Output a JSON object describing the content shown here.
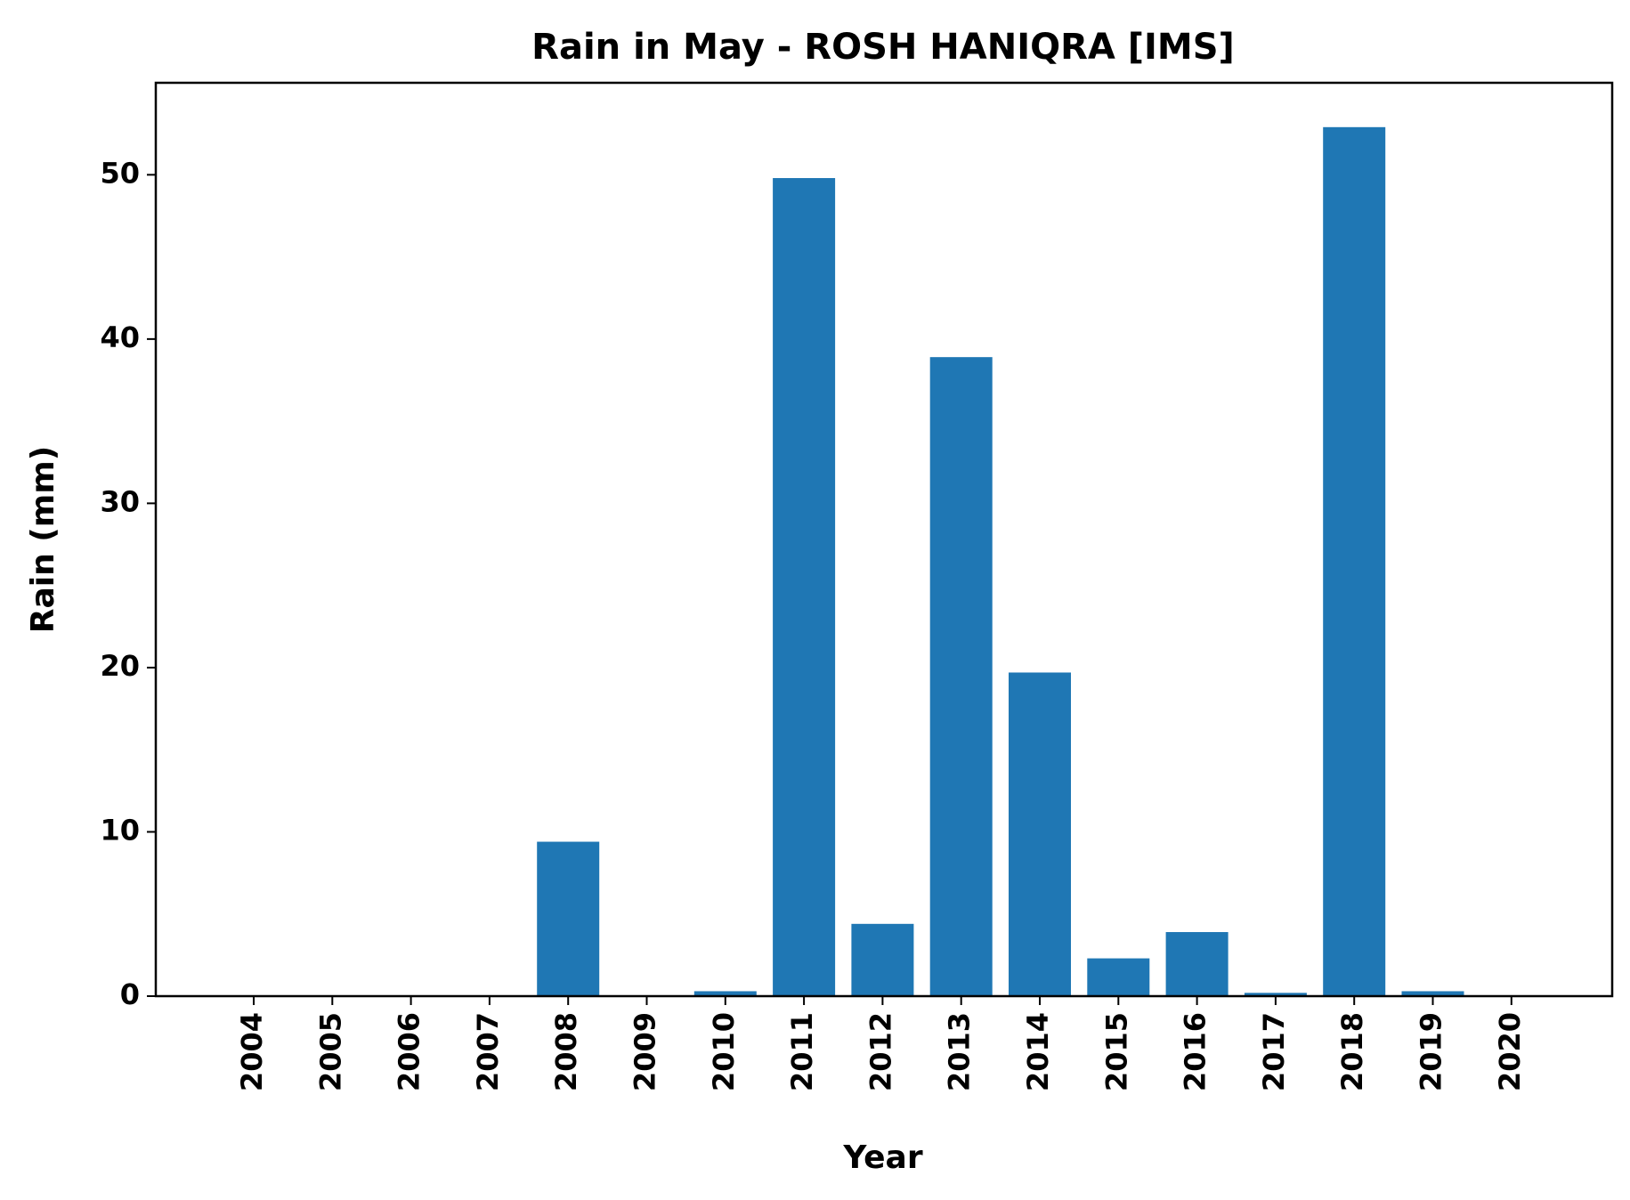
{
  "chart_data": {
    "type": "bar",
    "title": "Rain in May - ROSH HANIQRA [IMS]",
    "xlabel": "Year",
    "ylabel": "Rain (mm)",
    "categories": [
      "2004",
      "2005",
      "2006",
      "2007",
      "2008",
      "2009",
      "2010",
      "2011",
      "2012",
      "2013",
      "2014",
      "2015",
      "2016",
      "2017",
      "2018",
      "2019",
      "2020"
    ],
    "values": [
      0,
      0,
      0,
      0,
      9.4,
      0,
      0.3,
      49.8,
      4.4,
      38.9,
      19.7,
      2.3,
      3.9,
      0.2,
      52.9,
      0.3,
      0
    ],
    "ylim": [
      0,
      55.6
    ],
    "yticks": [
      0,
      10,
      20,
      30,
      40,
      50
    ],
    "bar_color": "#1f77b4",
    "grid": false,
    "legend": "none"
  }
}
